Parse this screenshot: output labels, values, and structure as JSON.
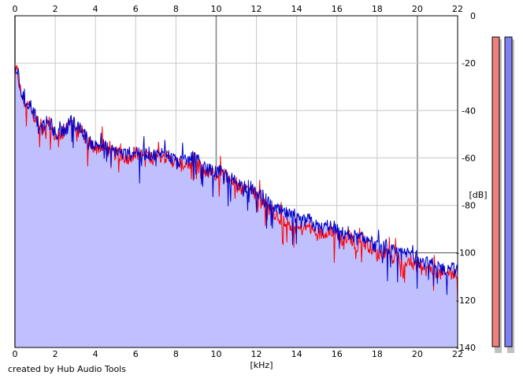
{
  "credit": "created by Hub Audio Tools",
  "colors": {
    "background": "#ffffff",
    "grid_minor": "#c8c8c8",
    "grid_major": "#808080",
    "fill": "#c0c0ff",
    "channel_right": "#ff0000",
    "channel_left": "#0000c8",
    "meter_left": "#f08080",
    "meter_right": "#8080f0",
    "meter_border": "#000000",
    "meter_shadow": "#c0c0c0"
  },
  "chart_data": {
    "type": "area",
    "title": "",
    "xlabel": "[kHz]",
    "ylabel": "[dB]",
    "xlim": [
      0,
      22
    ],
    "ylim": [
      -140,
      0
    ],
    "x_ticks": [
      "0",
      "2",
      "4",
      "6",
      "8",
      "10",
      "12",
      "14",
      "16",
      "18",
      "20",
      "22"
    ],
    "y_ticks": [
      "0",
      "-20",
      "-40",
      "-60",
      "-80",
      "-100",
      "-120",
      "-140"
    ],
    "grid": true,
    "legend": "none",
    "series": [
      {
        "channel": "blue",
        "x": [
          0,
          0.1,
          0.3,
          0.5,
          0.8,
          1.0,
          1.3,
          1.6,
          1.8,
          2.0,
          2.3,
          2.6,
          2.8,
          3.0,
          3.3,
          3.6,
          4.0,
          4.3,
          4.6,
          5.0,
          5.3,
          5.6,
          6.0,
          6.3,
          6.6,
          7.0,
          7.3,
          7.6,
          8.0,
          8.3,
          8.6,
          9.0,
          9.3,
          9.6,
          10.0,
          10.3,
          10.6,
          11.0,
          11.3,
          11.6,
          12.0,
          12.3,
          12.6,
          13.0,
          13.3,
          13.6,
          14.0,
          14.3,
          14.6,
          15.0,
          15.3,
          15.6,
          16.0,
          16.3,
          16.6,
          17.0,
          17.3,
          17.6,
          18.0,
          18.3,
          18.6,
          19.0,
          19.3,
          19.6,
          20.0,
          20.3,
          20.6,
          21.0,
          21.3,
          21.6,
          22.0
        ],
        "y": [
          -24,
          -22,
          -32,
          -36,
          -38,
          -42,
          -48,
          -45,
          -46,
          -50,
          -49,
          -47,
          -43,
          -47,
          -48,
          -52,
          -55,
          -54,
          -56,
          -57,
          -58,
          -59,
          -57,
          -58,
          -58,
          -59,
          -58,
          -59,
          -61,
          -62,
          -61,
          -60,
          -64,
          -65,
          -66,
          -66,
          -68,
          -70,
          -72,
          -72,
          -74,
          -76,
          -79,
          -82,
          -83,
          -84,
          -86,
          -87,
          -86,
          -89,
          -90,
          -88,
          -90,
          -92,
          -91,
          -94,
          -94,
          -95,
          -98,
          -97,
          -99,
          -100,
          -101,
          -100,
          -103,
          -104,
          -105,
          -105,
          -107,
          -106,
          -108
        ]
      },
      {
        "channel": "red",
        "x": [
          0,
          0.1,
          0.3,
          0.5,
          0.8,
          1.0,
          1.3,
          1.6,
          1.8,
          2.0,
          2.3,
          2.6,
          2.8,
          3.0,
          3.3,
          3.6,
          4.0,
          4.3,
          4.6,
          5.0,
          5.3,
          5.6,
          6.0,
          6.3,
          6.6,
          7.0,
          7.3,
          7.6,
          8.0,
          8.3,
          8.6,
          9.0,
          9.3,
          9.6,
          10.0,
          10.3,
          10.6,
          11.0,
          11.3,
          11.6,
          12.0,
          12.3,
          12.6,
          13.0,
          13.3,
          13.6,
          14.0,
          14.3,
          14.6,
          15.0,
          15.3,
          15.6,
          16.0,
          16.3,
          16.6,
          17.0,
          17.3,
          17.6,
          18.0,
          18.3,
          18.6,
          19.0,
          19.3,
          19.6,
          20.0,
          20.3,
          20.6,
          21.0,
          21.3,
          21.6,
          22.0
        ],
        "y": [
          -25,
          -23,
          -33,
          -37,
          -39,
          -43,
          -49,
          -46,
          -47,
          -51,
          -50,
          -48,
          -44,
          -48,
          -49,
          -53,
          -56,
          -55,
          -57,
          -58,
          -59,
          -60,
          -58,
          -59,
          -59,
          -60,
          -59,
          -60,
          -62,
          -63,
          -62,
          -61,
          -65,
          -66,
          -67,
          -67,
          -69,
          -71,
          -73,
          -73,
          -75,
          -78,
          -81,
          -84,
          -86,
          -87,
          -90,
          -90,
          -89,
          -92,
          -92,
          -90,
          -92,
          -95,
          -93,
          -97,
          -96,
          -97,
          -101,
          -100,
          -102,
          -103,
          -104,
          -103,
          -106,
          -107,
          -107,
          -108,
          -110,
          -108,
          -110
        ]
      }
    ]
  }
}
